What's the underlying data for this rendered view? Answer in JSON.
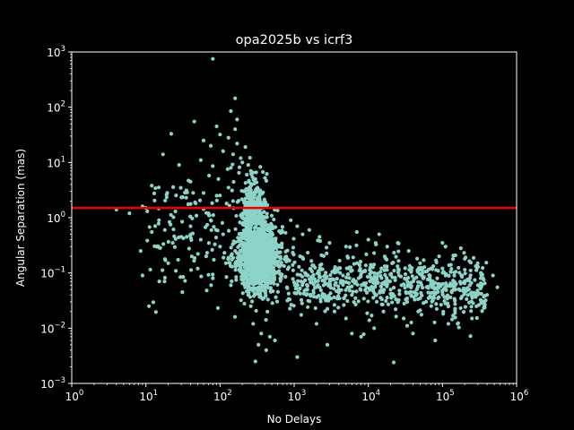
{
  "chart_data": {
    "type": "scatter",
    "title": "opa2025b vs icrf3",
    "xlabel": "No Delays",
    "ylabel": "Angular Separation (mas)",
    "xscale": "log",
    "yscale": "log",
    "xlim": [
      1,
      1000000
    ],
    "ylim": [
      0.001,
      1000
    ],
    "x_ticks": [
      {
        "value": 1,
        "base": "10",
        "exp": "0"
      },
      {
        "value": 10,
        "base": "10",
        "exp": "1"
      },
      {
        "value": 100,
        "base": "10",
        "exp": "2"
      },
      {
        "value": 1000,
        "base": "10",
        "exp": "3"
      },
      {
        "value": 10000,
        "base": "10",
        "exp": "4"
      },
      {
        "value": 100000,
        "base": "10",
        "exp": "5"
      },
      {
        "value": 1000000,
        "base": "10",
        "exp": "6"
      }
    ],
    "y_ticks": [
      {
        "value": 0.001,
        "base": "10",
        "exp": "−3"
      },
      {
        "value": 0.01,
        "base": "10",
        "exp": "−2"
      },
      {
        "value": 0.1,
        "base": "10",
        "exp": "−1"
      },
      {
        "value": 1,
        "base": "10",
        "exp": "0"
      },
      {
        "value": 10,
        "base": "10",
        "exp": "1"
      },
      {
        "value": 100,
        "base": "10",
        "exp": "2"
      },
      {
        "value": 1000,
        "base": "10",
        "exp": "3"
      }
    ],
    "grid": false,
    "background": "#000000",
    "foreground": "#ffffff",
    "point_color": "#8dd3c7",
    "threshold_line": {
      "y": 1.5,
      "color": "#ee0000"
    },
    "points": [
      [
        80,
        750
      ],
      [
        160,
        145
      ],
      [
        140,
        85
      ],
      [
        170,
        60
      ],
      [
        45,
        55
      ],
      [
        90,
        45
      ],
      [
        160,
        40
      ],
      [
        100,
        32
      ],
      [
        22,
        33
      ],
      [
        130,
        28
      ],
      [
        60,
        25
      ],
      [
        170,
        22
      ],
      [
        75,
        20
      ],
      [
        220,
        19
      ],
      [
        110,
        16
      ],
      [
        150,
        14
      ],
      [
        190,
        12
      ],
      [
        55,
        11
      ],
      [
        17,
        14
      ],
      [
        200,
        10
      ],
      [
        240,
        9
      ],
      [
        28,
        9
      ],
      [
        140,
        8
      ],
      [
        260,
        7
      ],
      [
        180,
        6.5
      ],
      [
        230,
        6
      ],
      [
        95,
        5
      ],
      [
        40,
        4.5
      ],
      [
        300,
        5
      ],
      [
        270,
        4
      ],
      [
        130,
        3.5
      ],
      [
        12,
        3.8
      ],
      [
        210,
        3
      ],
      [
        60,
        2.8
      ],
      [
        90,
        2.5
      ],
      [
        320,
        3.5
      ],
      [
        35,
        2.3
      ],
      [
        150,
        2
      ],
      [
        19,
        2.6
      ],
      [
        250,
        2.2
      ],
      [
        46,
        1.9
      ],
      [
        9,
        1.6
      ],
      [
        4,
        1.4
      ],
      [
        6,
        1.2
      ],
      [
        25,
        1.3
      ],
      [
        70,
        1.2
      ],
      [
        190,
        1.1
      ],
      [
        360,
        2.8
      ],
      [
        410,
        1.9
      ],
      [
        8.5,
        0.25
      ],
      [
        11,
        0.025
      ],
      [
        9,
        0.09
      ],
      [
        12,
        0.55
      ],
      [
        15,
        0.9
      ],
      [
        20,
        0.15
      ],
      [
        14,
        0.3
      ],
      [
        30,
        0.45
      ],
      [
        18,
        0.6
      ],
      [
        23,
        0.35
      ],
      [
        40,
        0.7
      ],
      [
        55,
        0.4
      ],
      [
        50,
        0.12
      ],
      [
        65,
        0.2
      ],
      [
        80,
        0.08
      ],
      [
        100,
        0.3
      ],
      [
        120,
        0.15
      ],
      [
        140,
        0.06
      ],
      [
        160,
        0.25
      ],
      [
        110,
        0.5
      ],
      [
        75,
        0.9
      ],
      [
        220,
        0.08
      ],
      [
        240,
        0.04
      ],
      [
        260,
        0.025
      ],
      [
        280,
        0.012
      ],
      [
        300,
        0.0025
      ],
      [
        330,
        0.005
      ],
      [
        360,
        0.008
      ],
      [
        420,
        0.004
      ],
      [
        470,
        0.007
      ],
      [
        550,
        0.006
      ],
      [
        1100,
        0.003
      ],
      [
        2000,
        0.012
      ],
      [
        2800,
        0.005
      ],
      [
        3500,
        0.02
      ],
      [
        5000,
        0.015
      ],
      [
        6000,
        0.008
      ],
      [
        8000,
        0.007
      ],
      [
        12000,
        0.01
      ],
      [
        16000,
        0.02
      ],
      [
        22000,
        0.0024
      ],
      [
        30000,
        0.015
      ],
      [
        40000,
        0.008
      ],
      [
        60000,
        0.03
      ],
      [
        80000,
        0.006
      ],
      [
        120000,
        0.012
      ],
      [
        160000,
        0.012
      ],
      [
        250000,
        0.015
      ],
      [
        330000,
        0.1
      ],
      [
        400000,
        0.04
      ],
      [
        550000,
        0.055
      ],
      [
        480000,
        0.09
      ],
      [
        200000,
        0.18
      ],
      [
        130000,
        0.14
      ],
      [
        100000,
        0.35
      ],
      [
        180000,
        0.09
      ],
      [
        90000,
        0.2
      ],
      [
        110000,
        0.3
      ],
      [
        70000,
        0.12
      ],
      [
        50000,
        0.15
      ],
      [
        35000,
        0.25
      ],
      [
        25000,
        0.35
      ],
      [
        18000,
        0.3
      ],
      [
        14000,
        0.5
      ],
      [
        10000,
        0.4
      ],
      [
        7000,
        0.55
      ],
      [
        5000,
        0.3
      ],
      [
        3000,
        0.35
      ],
      [
        2200,
        0.45
      ],
      [
        1600,
        0.6
      ],
      [
        1300,
        0.5
      ],
      [
        1100,
        0.7
      ],
      [
        900,
        0.9
      ],
      [
        1200,
        0.2
      ],
      [
        1400,
        0.1
      ],
      [
        1800,
        0.08
      ],
      [
        2500,
        0.06
      ],
      [
        4000,
        0.05
      ],
      [
        6000,
        0.04
      ],
      [
        9000,
        0.06
      ],
      [
        13000,
        0.03
      ],
      [
        20000,
        0.05
      ],
      [
        28000,
        0.06
      ],
      [
        45000,
        0.05
      ],
      [
        65000,
        0.035
      ],
      [
        100000,
        0.045
      ],
      [
        150000,
        0.05
      ],
      [
        220000,
        0.04
      ],
      [
        300000,
        0.06
      ],
      [
        17000,
        0.07
      ],
      [
        26000,
        0.09
      ],
      [
        38000,
        0.11
      ],
      [
        55000,
        0.08
      ]
    ]
  }
}
